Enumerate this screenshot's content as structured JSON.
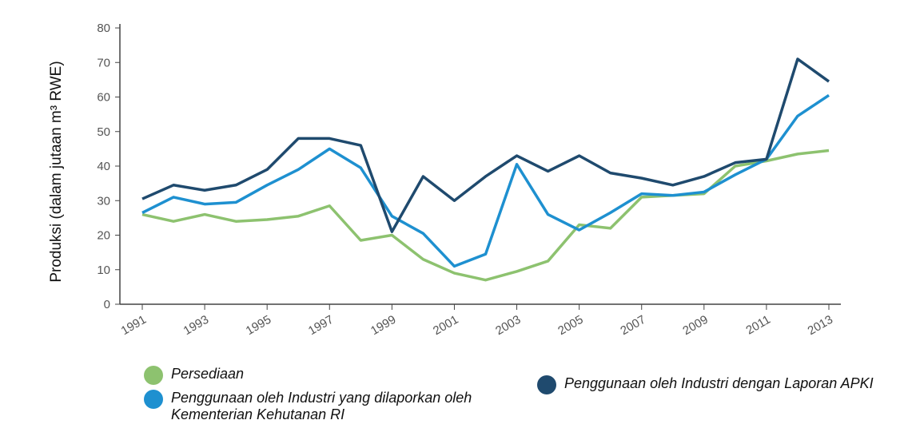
{
  "chart_data": {
    "type": "line",
    "ylabel": "Produksi (dalam jutaan m³ RWE)",
    "x": [
      1991,
      1992,
      1993,
      1994,
      1995,
      1996,
      1997,
      1998,
      1999,
      2000,
      2001,
      2002,
      2003,
      2004,
      2005,
      2006,
      2007,
      2008,
      2009,
      2010,
      2011,
      2012,
      2013
    ],
    "series": [
      {
        "name": "Persediaan",
        "color": "#8dc26f",
        "values": [
          26,
          24,
          26,
          24,
          24.5,
          25.5,
          28.5,
          18.5,
          20,
          13,
          9,
          7,
          9.5,
          12.5,
          23,
          22,
          31,
          31.5,
          32,
          40,
          41.5,
          43.5,
          44.5
        ]
      },
      {
        "name": "Penggunaan oleh Industri yang dilaporkan oleh Kementerian Kehutanan RI",
        "color": "#1e90d0",
        "values": [
          26.5,
          31,
          29,
          29.5,
          34.5,
          39,
          45,
          39.5,
          25.5,
          20.5,
          11,
          14.5,
          40.5,
          26,
          21.5,
          26.5,
          32,
          31.5,
          32.5,
          37.5,
          42,
          54.5,
          60.5
        ]
      },
      {
        "name": "Penggunaan oleh Industri dengan Laporan APKI",
        "color": "#1f4a6e",
        "values": [
          30.5,
          34.5,
          33,
          34.5,
          39,
          48,
          48,
          46,
          21,
          37,
          30,
          37,
          43,
          38.5,
          43,
          38,
          36.5,
          34.5,
          37,
          41,
          42,
          71,
          64.5
        ]
      }
    ],
    "xlim": [
      1991,
      2013
    ],
    "xticks": [
      1991,
      1993,
      1995,
      1997,
      1999,
      2001,
      2003,
      2005,
      2007,
      2009,
      2011,
      2013
    ],
    "ylim": [
      0,
      80
    ],
    "yticks": [
      0,
      10,
      20,
      30,
      40,
      50,
      60,
      70,
      80
    ]
  }
}
